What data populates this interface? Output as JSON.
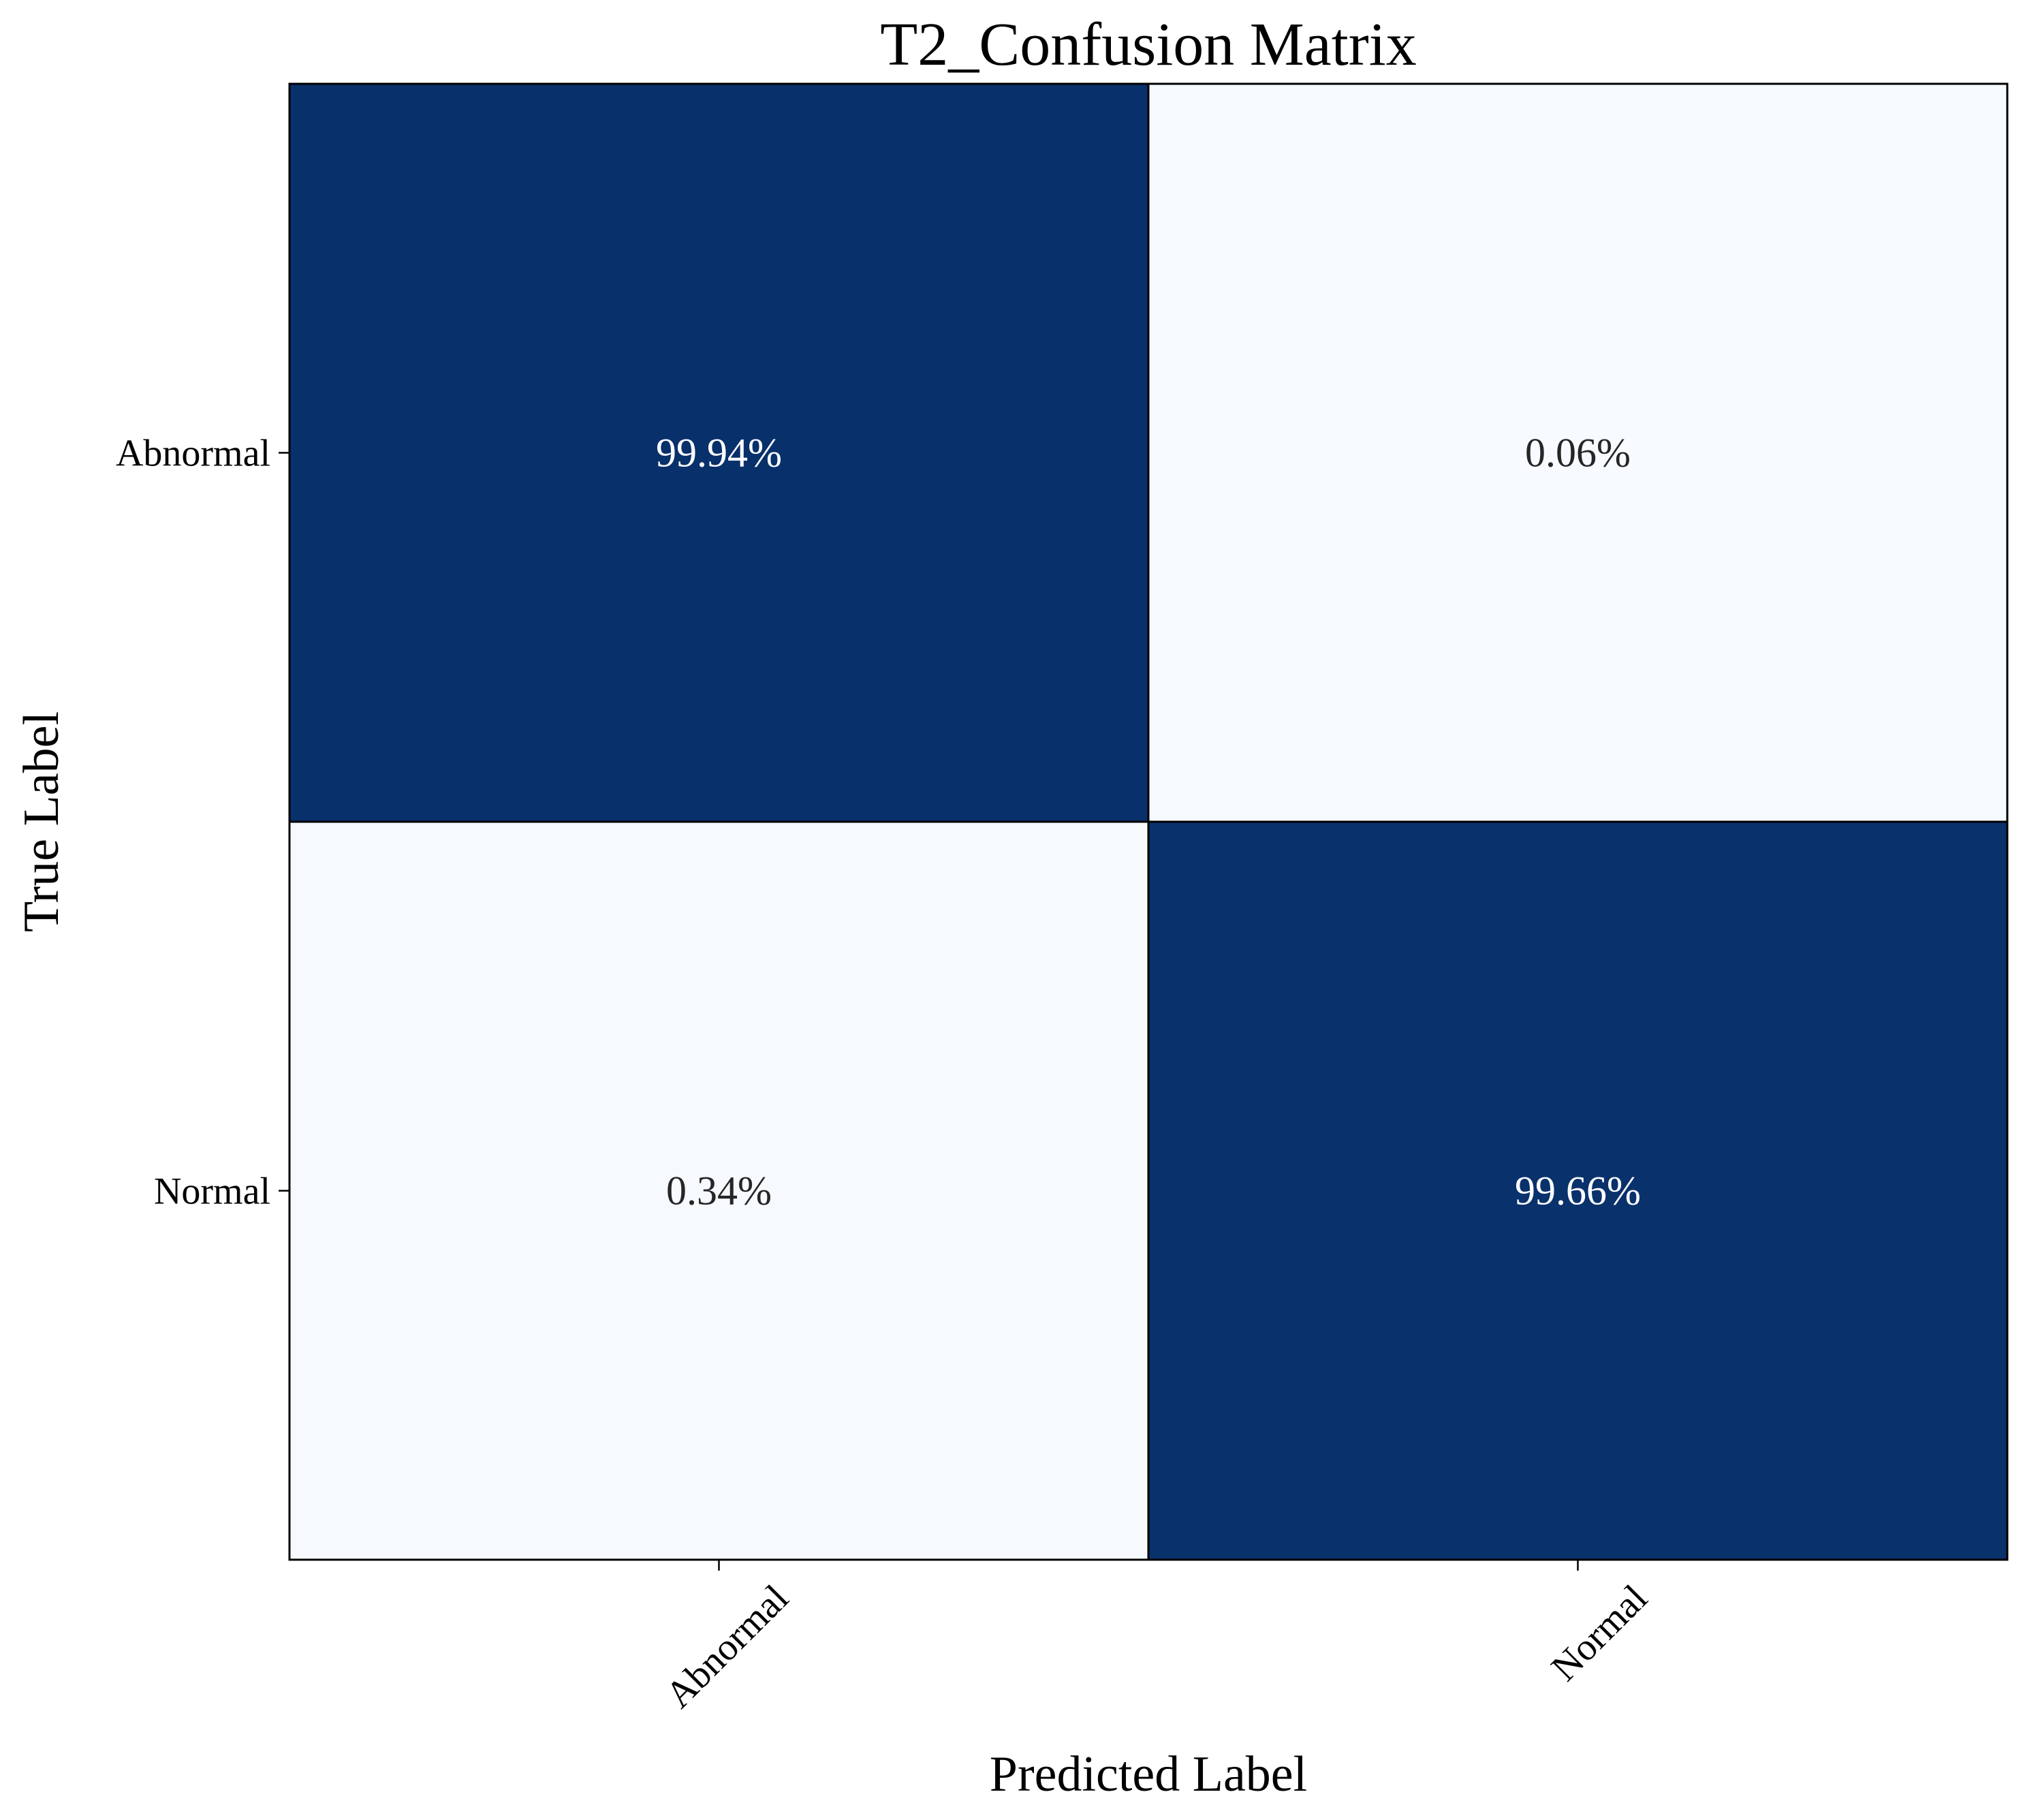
{
  "chart_data": {
    "type": "heatmap",
    "title": "T2_Confusion Matrix",
    "xlabel": "Predicted Label",
    "ylabel": "True Label",
    "x_categories": [
      "Abnormal",
      "Normal"
    ],
    "y_categories": [
      "Abnormal",
      "Normal"
    ],
    "values": [
      [
        99.94,
        0.06
      ],
      [
        0.34,
        99.66
      ]
    ],
    "cell_labels": [
      [
        "99.94%",
        "0.06%"
      ],
      [
        "0.34%",
        "99.66%"
      ]
    ],
    "colormap": "Blues",
    "color_low": "#f7fbff",
    "color_high": "#08306b",
    "value_range": [
      0,
      100
    ],
    "grid": false,
    "legend": "none"
  }
}
